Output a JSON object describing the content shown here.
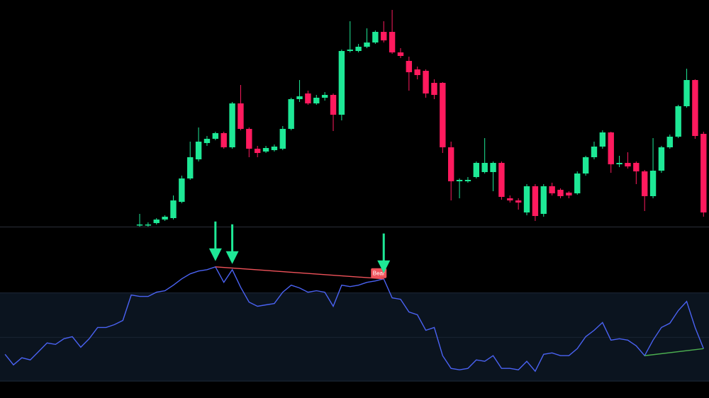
{
  "chart_data": [
    {
      "type": "candlestick",
      "up_color": "#1ee896",
      "down_color": "#ff1a5e",
      "ylim": [
        0,
        320
      ],
      "open": [
        2,
        2,
        5,
        10,
        12,
        35,
        68,
        95,
        118,
        124,
        132,
        112,
        174,
        138,
        110,
        106,
        108,
        110,
        138,
        180,
        188,
        174,
        182,
        186,
        158,
        248,
        248,
        254,
        260,
        275,
        275,
        246,
        234,
        222,
        220,
        203,
        203,
        112,
        64,
        64,
        70,
        77,
        77,
        90,
        40,
        37,
        20,
        57,
        18,
        57,
        52,
        48,
        47,
        75,
        98,
        113,
        133,
        88,
        90,
        90,
        78,
        43,
        79,
        112,
        127,
        170,
        207,
        131
      ],
      "close": [
        3,
        3,
        10,
        14,
        37,
        68,
        98,
        120,
        124,
        132,
        112,
        174,
        138,
        110,
        104,
        111,
        113,
        138,
        180,
        184,
        174,
        182,
        186,
        158,
        248,
        250,
        254,
        260,
        275,
        263,
        246,
        241,
        218,
        214,
        188,
        186,
        112,
        64,
        66,
        66,
        90,
        90,
        90,
        42,
        37,
        34,
        57,
        15,
        57,
        47,
        43,
        44,
        75,
        98,
        113,
        133,
        88,
        90,
        85,
        78,
        43,
        79,
        112,
        127,
        170,
        207,
        128,
        20
      ],
      "high": [
        18,
        6,
        12,
        16,
        44,
        72,
        120,
        140,
        128,
        134,
        134,
        176,
        200,
        140,
        114,
        114,
        116,
        142,
        182,
        207,
        192,
        186,
        190,
        188,
        250,
        290,
        258,
        280,
        277,
        290,
        306,
        252,
        240,
        226,
        222,
        208,
        204,
        120,
        68,
        70,
        92,
        125,
        92,
        92,
        44,
        40,
        60,
        60,
        60,
        62,
        54,
        50,
        78,
        100,
        120,
        136,
        134,
        100,
        105,
        92,
        80,
        125,
        114,
        130,
        172,
        223,
        208,
        134
      ],
      "low": [
        0,
        0,
        3,
        8,
        10,
        33,
        66,
        92,
        114,
        122,
        110,
        110,
        136,
        98,
        98,
        104,
        106,
        108,
        136,
        176,
        172,
        172,
        178,
        135,
        150,
        246,
        246,
        252,
        258,
        260,
        244,
        238,
        192,
        208,
        182,
        180,
        104,
        37,
        40,
        62,
        68,
        75,
        50,
        38,
        34,
        24,
        16,
        8,
        14,
        44,
        40,
        40,
        45,
        72,
        95,
        110,
        76,
        84,
        82,
        60,
        22,
        40,
        76,
        110,
        125,
        168,
        124,
        14
      ]
    },
    {
      "type": "line",
      "color": "#4a62f2",
      "band_color": "#0b141f",
      "ylim": [
        0,
        242
      ],
      "band": [
        24,
        149
      ],
      "midline": 86,
      "values": [
        62,
        47,
        57,
        54,
        66,
        78,
        76,
        84,
        87,
        72,
        84,
        100,
        100,
        104,
        110,
        146,
        144,
        144,
        150,
        152,
        160,
        169,
        176,
        180,
        182,
        186,
        164,
        182,
        157,
        136,
        130,
        132,
        134,
        150,
        160,
        156,
        150,
        152,
        150,
        130,
        160,
        158,
        160,
        164,
        166,
        169,
        142,
        140,
        122,
        118,
        96,
        100,
        60,
        42,
        40,
        42,
        54,
        52,
        60,
        42,
        42,
        40,
        52,
        38,
        62,
        64,
        60,
        60,
        70,
        87,
        96,
        107,
        82,
        84,
        82,
        74,
        60,
        82,
        100,
        106,
        124,
        137,
        100,
        70
      ],
      "divergences": [
        {
          "label": "Bear",
          "from": 25,
          "to": 45,
          "color": "#f0525a"
        },
        {
          "from": 76,
          "to": 83,
          "color": "#4caf50"
        }
      ],
      "arrows": [
        25,
        27,
        45
      ],
      "arrow_color": "#1ee896"
    }
  ]
}
